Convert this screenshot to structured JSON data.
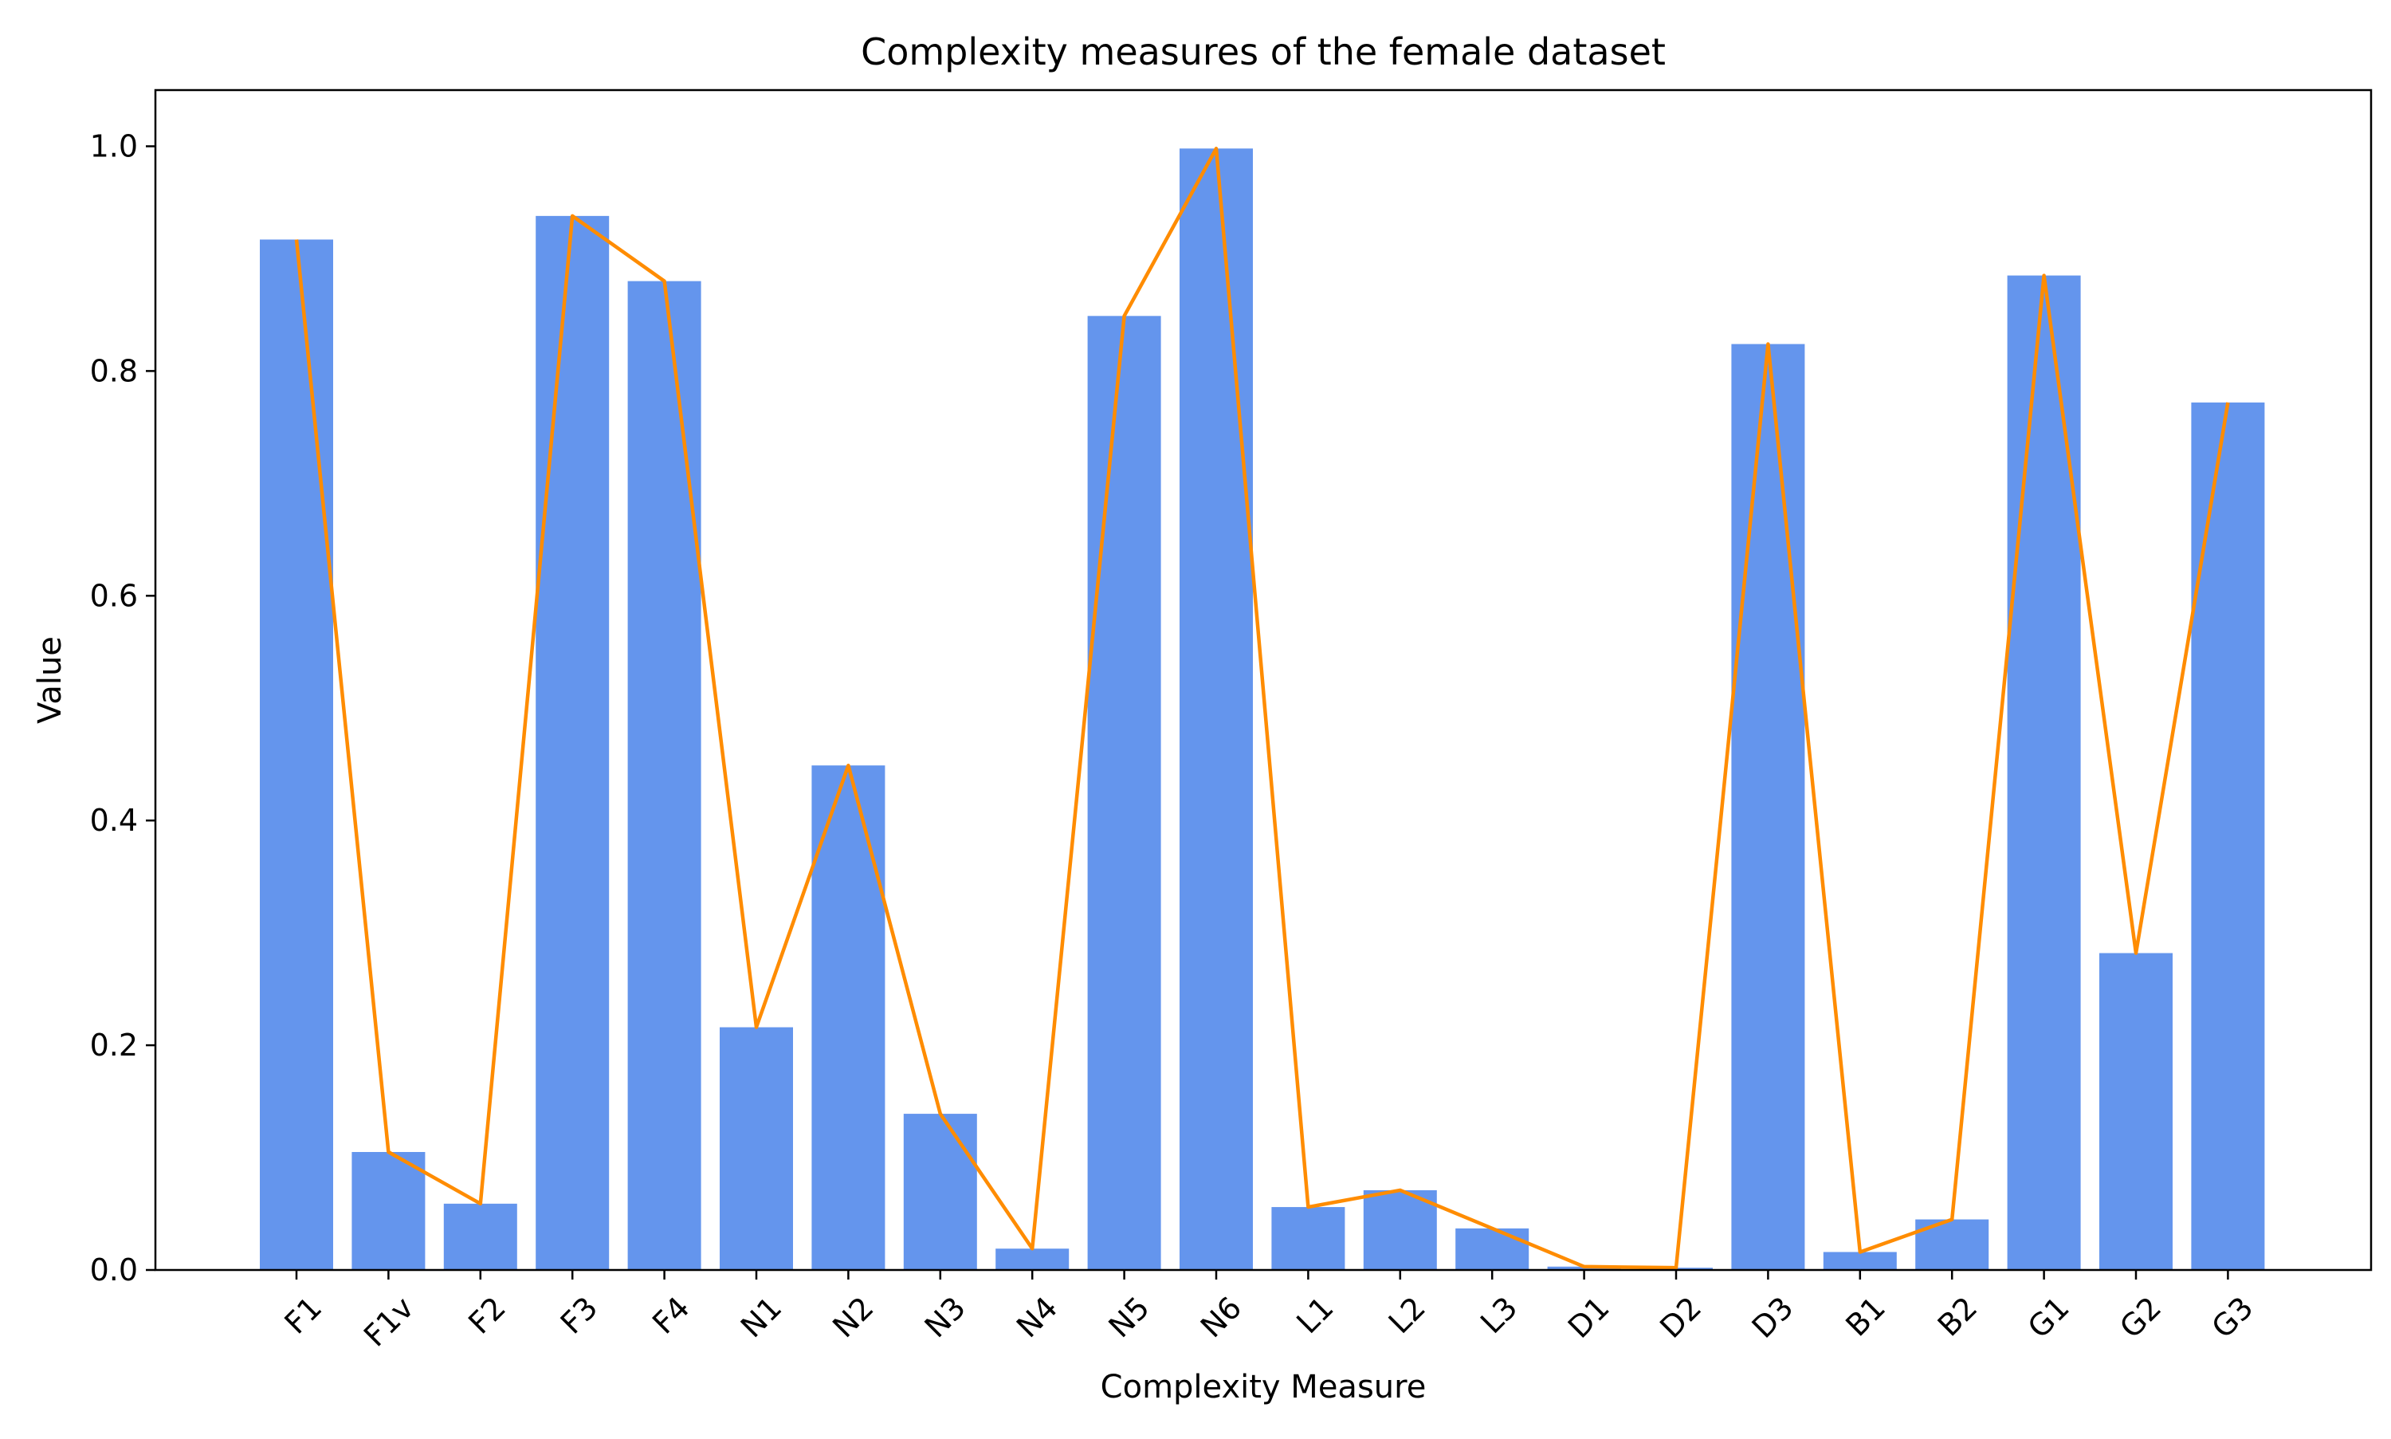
{
  "chart_data": {
    "type": "bar",
    "title": "Complexity measures of the female dataset",
    "xlabel": "Complexity Measure",
    "ylabel": "Value",
    "ylim": [
      0,
      1.05
    ],
    "yticks": [
      "0.0",
      "0.2",
      "0.4",
      "0.6",
      "0.8",
      "1.0"
    ],
    "categories": [
      "F1",
      "F1v",
      "F2",
      "F3",
      "F4",
      "N1",
      "N2",
      "N3",
      "N4",
      "N5",
      "N6",
      "L1",
      "L2",
      "L3",
      "D1",
      "D2",
      "D3",
      "B1",
      "B2",
      "G1",
      "G2",
      "G3"
    ],
    "values": [
      0.917,
      0.105,
      0.059,
      0.938,
      0.88,
      0.216,
      0.449,
      0.139,
      0.019,
      0.849,
      0.998,
      0.056,
      0.071,
      0.037,
      0.003,
      0.002,
      0.824,
      0.016,
      0.045,
      0.885,
      0.282,
      0.772
    ],
    "overlay_line": "values connected by a line",
    "grid": false,
    "legend": "none",
    "colors": {
      "bar": "#6495ED",
      "line": "#FF8C00",
      "axis": "#000000"
    }
  }
}
